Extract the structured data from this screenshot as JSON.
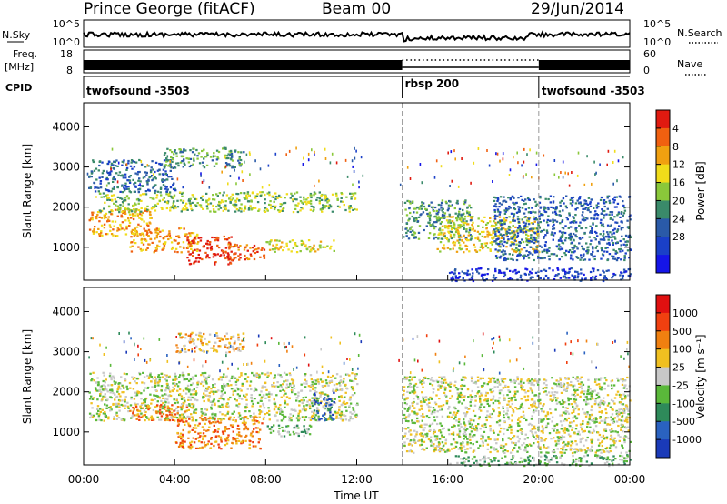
{
  "header": {
    "station": "Prince George (fitACF)",
    "beam": "Beam 00",
    "date": "29/Jun/2014"
  },
  "strips": {
    "nsky": {
      "label": "N.Sky",
      "left_ticks": [
        "10^5",
        "10^0"
      ],
      "right_label": "N.Search",
      "right_ticks": [
        "10^5",
        "10^0"
      ]
    },
    "freq": {
      "label_top": "Freq.",
      "label_bottom": "[MHz]",
      "left_ticks": [
        "18",
        "8"
      ],
      "right_label": "Nave",
      "right_ticks": [
        "60",
        "0"
      ]
    },
    "cpid": {
      "label": "CPID",
      "segments": [
        {
          "name": "twofsound -3503",
          "start_h": 0,
          "end_h": 14
        },
        {
          "name": "rbsp 200",
          "start_h": 14,
          "end_h": 20
        },
        {
          "name": "twofsound -3503",
          "start_h": 20,
          "end_h": 24
        }
      ]
    }
  },
  "chart_data": [
    {
      "type": "heatmap",
      "ylabel": "Slant Range [km]",
      "x_range_h": [
        0,
        24
      ],
      "ylim": [
        180,
        4600
      ],
      "y_ticks": [
        1000,
        2000,
        3000,
        4000
      ],
      "colorbar": {
        "label": "Power [dB]",
        "ticks": [
          "4",
          "8",
          "12",
          "16",
          "20",
          "24",
          "28"
        ],
        "colors": [
          "#1515e8",
          "#1a40c8",
          "#2a5aa8",
          "#3a8a6a",
          "#8ac83a",
          "#f0dc1a",
          "#f0a010",
          "#f06010",
          "#e01a10"
        ]
      },
      "regions": [
        {
          "t0": 0.2,
          "t1": 3.0,
          "r0": 1300,
          "r1": 2000,
          "level": 6
        },
        {
          "t0": 2.0,
          "t1": 5.0,
          "r0": 900,
          "r1": 1500,
          "level": 6
        },
        {
          "t0": 4.5,
          "t1": 6.5,
          "r0": 600,
          "r1": 1300,
          "level": 8
        },
        {
          "t0": 6.2,
          "t1": 8.0,
          "r0": 700,
          "r1": 1100,
          "level": 7
        },
        {
          "t0": 0.5,
          "t1": 12.0,
          "r0": 1900,
          "r1": 2400,
          "level": 4
        },
        {
          "t0": 0.2,
          "t1": 4.0,
          "r0": 2400,
          "r1": 3200,
          "level": 2
        },
        {
          "t0": 8.0,
          "t1": 11.0,
          "r0": 900,
          "r1": 1200,
          "level": 5
        },
        {
          "t0": 3.5,
          "t1": 7.0,
          "r0": 3000,
          "r1": 3500,
          "level": 3
        },
        {
          "t0": 14.0,
          "t1": 17.0,
          "r0": 1200,
          "r1": 2200,
          "level": 3
        },
        {
          "t0": 15.5,
          "t1": 20.0,
          "r0": 900,
          "r1": 1800,
          "level": 5
        },
        {
          "t0": 18.0,
          "t1": 24.0,
          "r0": 700,
          "r1": 2300,
          "level": 2
        },
        {
          "t0": 16.0,
          "t1": 24.0,
          "r0": 180,
          "r1": 500,
          "level": 1
        }
      ]
    },
    {
      "type": "heatmap",
      "ylabel": "Slant Range [km]",
      "x_range_h": [
        0,
        24
      ],
      "ylim": [
        180,
        4600
      ],
      "y_ticks": [
        1000,
        2000,
        3000,
        4000
      ],
      "colorbar": {
        "label": "Velocity [m s⁻¹]",
        "ticks": [
          "1000",
          "500",
          "100",
          "25",
          "-25",
          "-100",
          "-500",
          "-1000"
        ],
        "colors": [
          "#1a3ab8",
          "#2a62c0",
          "#2e8a5a",
          "#5ab83a",
          "#c8c8c8",
          "#f0c020",
          "#f08010",
          "#f04010",
          "#e01010"
        ]
      },
      "xlabel": "Time UT",
      "x_ticks": [
        "00:00",
        "04:00",
        "08:00",
        "12:00",
        "16:00",
        "20:00",
        "00:00"
      ],
      "regions": [
        {
          "t0": 0.2,
          "t1": 12.0,
          "r0": 1300,
          "r1": 2500,
          "level": 4
        },
        {
          "t0": 4.0,
          "t1": 7.8,
          "r0": 600,
          "r1": 1400,
          "level": 6
        },
        {
          "t0": 2.0,
          "t1": 4.5,
          "r0": 1300,
          "r1": 1700,
          "level": 6
        },
        {
          "t0": 8.0,
          "t1": 10.0,
          "r0": 900,
          "r1": 1200,
          "level": 3
        },
        {
          "t0": 10.0,
          "t1": 11.0,
          "r0": 1300,
          "r1": 2000,
          "level": 1
        },
        {
          "t0": 4.0,
          "t1": 7.0,
          "r0": 3000,
          "r1": 3500,
          "level": 5
        },
        {
          "t0": 14.0,
          "t1": 24.0,
          "r0": 500,
          "r1": 2400,
          "level": 4
        },
        {
          "t0": 16.0,
          "t1": 24.0,
          "r0": 180,
          "r1": 450,
          "level": 3
        }
      ]
    }
  ]
}
